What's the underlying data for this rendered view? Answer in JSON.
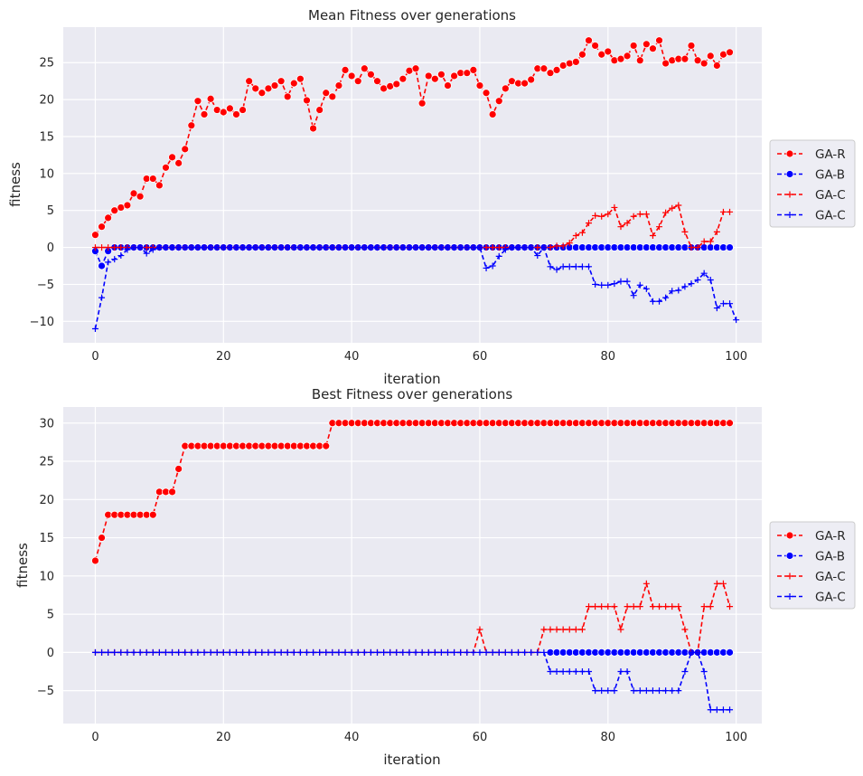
{
  "figure": {
    "background": "#ffffff",
    "plot_background": "#eaeaf2",
    "grid_color": "#ffffff"
  },
  "chart_data": [
    {
      "type": "line",
      "title": "Mean Fitness over generations",
      "xlabel": "iteration",
      "ylabel": "fitness",
      "xlim": [
        -5,
        104
      ],
      "ylim": [
        -12.9,
        29.8
      ],
      "xticks": [
        0,
        20,
        40,
        60,
        80,
        100
      ],
      "yticks": [
        -10,
        -5,
        0,
        5,
        10,
        15,
        20,
        25
      ],
      "grid": true,
      "legend_position": "center-right-outside",
      "series": [
        {
          "name": "GA-R",
          "color": "#ff0000",
          "marker": "o",
          "x_start": 0,
          "values": [
            1.7,
            2.8,
            4,
            5,
            5.4,
            5.7,
            7.3,
            6.9,
            9.3,
            9.3,
            8.4,
            10.8,
            12.2,
            11.4,
            13.3,
            16.5,
            19.8,
            18,
            20.1,
            18.6,
            18.3,
            18.8,
            18,
            18.6,
            22.5,
            21.5,
            20.9,
            21.5,
            21.9,
            22.5,
            20.4,
            22.2,
            22.8,
            19.9,
            16.1,
            18.6,
            20.9,
            20.4,
            21.9,
            24,
            23.2,
            22.5,
            24.2,
            23.4,
            22.5,
            21.5,
            21.8,
            22.1,
            22.8,
            23.9,
            24.2,
            19.5,
            23.2,
            22.8,
            23.4,
            21.9,
            23.2,
            23.6,
            23.6,
            24,
            21.9,
            20.9,
            18,
            19.8,
            21.5,
            22.5,
            22.2,
            22.2,
            22.7,
            24.2,
            24.2,
            23.6,
            24,
            24.6,
            24.9,
            25.1,
            26.1,
            28,
            27.3,
            26.1,
            26.5,
            25.3,
            25.5,
            25.9,
            27.3,
            25.3,
            27.5,
            26.9,
            28,
            24.9,
            25.3,
            25.5,
            25.5,
            27.3,
            25.3,
            24.9,
            25.9,
            24.6,
            26.1,
            26.4
          ]
        },
        {
          "name": "GA-B",
          "color": "#0000ff",
          "marker": "o",
          "x_start": 0,
          "values": [
            -0.5,
            -2.5,
            -0.5,
            0,
            0,
            0,
            0,
            0,
            0,
            0,
            0,
            0,
            0,
            0,
            0,
            0,
            0,
            0,
            0,
            0,
            0,
            0,
            0,
            0,
            0,
            0,
            0,
            0,
            0,
            0,
            0,
            0,
            0,
            0,
            0,
            0,
            0,
            0,
            0,
            0,
            0,
            0,
            0,
            0,
            0,
            0,
            0,
            0,
            0,
            0,
            0,
            0,
            0,
            0,
            0,
            0,
            0,
            0,
            0,
            0,
            0,
            0,
            0,
            0,
            0,
            0,
            0,
            0,
            0,
            0,
            0,
            0,
            0,
            0,
            0,
            0,
            0,
            0,
            0,
            0,
            0,
            0,
            0,
            0,
            0,
            0,
            0,
            0,
            0,
            0,
            0,
            0,
            0,
            0,
            0,
            0,
            0,
            0,
            0,
            0
          ]
        },
        {
          "name": "GA-C",
          "color": "#ff0000",
          "marker": "+",
          "x_start": 0,
          "values": [
            0,
            0,
            0,
            0,
            0,
            0,
            0,
            0,
            0,
            0,
            0,
            0,
            0,
            0,
            0,
            0,
            0,
            0,
            0,
            0,
            0,
            0,
            0,
            0,
            0,
            0,
            0,
            0,
            0,
            0,
            0,
            0,
            0,
            0,
            0,
            0,
            0,
            0,
            0,
            0,
            0,
            0,
            0,
            0,
            0,
            0,
            0,
            0,
            0,
            0,
            0,
            0,
            0,
            0,
            0,
            0,
            0,
            0,
            0,
            0,
            0,
            0,
            0,
            0,
            0,
            0,
            0,
            0,
            0,
            0,
            0,
            0,
            0.2,
            0.2,
            0.6,
            1.6,
            2,
            3.3,
            4.3,
            4.2,
            4.5,
            5.4,
            2.8,
            3.3,
            4.2,
            4.5,
            4.5,
            1.6,
            2.8,
            4.7,
            5.3,
            5.7,
            2.1,
            0,
            0,
            0.8,
            0.8,
            2.1,
            4.8,
            4.8
          ]
        },
        {
          "name": "GA-C",
          "color": "#0000ff",
          "marker": "+",
          "x_start": 0,
          "values": [
            -11,
            -6.8,
            -2,
            -1.6,
            -1.1,
            -0.3,
            0,
            0,
            -0.8,
            -0.3,
            0,
            0,
            0,
            0,
            0,
            0,
            0,
            0,
            0,
            0,
            0,
            0,
            0,
            0,
            0,
            0,
            0,
            0,
            0,
            0,
            0,
            0,
            0,
            0,
            0,
            0,
            0,
            0,
            0,
            0,
            0,
            0,
            0,
            0,
            0,
            0,
            0,
            0,
            0,
            0,
            0,
            0,
            0,
            0,
            0,
            0,
            0,
            0,
            0,
            0,
            0,
            -2.8,
            -2.5,
            -1.2,
            -0.3,
            0,
            0,
            0,
            0,
            -1.1,
            0,
            -2.6,
            -3,
            -2.6,
            -2.6,
            -2.6,
            -2.6,
            -2.6,
            -5,
            -5.1,
            -5.1,
            -4.9,
            -4.6,
            -4.6,
            -6.5,
            -5.1,
            -5.6,
            -7.3,
            -7.3,
            -6.8,
            -5.9,
            -5.8,
            -5.3,
            -4.9,
            -4.4,
            -3.5,
            -4.4,
            -8.2,
            -7.6,
            -7.6,
            -9.8
          ]
        }
      ]
    },
    {
      "type": "line",
      "title": "Best Fitness over generations",
      "xlabel": "iteration",
      "ylabel": "fitness",
      "xlim": [
        -5,
        104
      ],
      "ylim": [
        -9.3,
        32.1
      ],
      "xticks": [
        0,
        20,
        40,
        60,
        80,
        100
      ],
      "yticks": [
        -5,
        0,
        5,
        10,
        15,
        20,
        25,
        30
      ],
      "grid": true,
      "legend_position": "center-right-outside",
      "series": [
        {
          "name": "GA-R",
          "color": "#ff0000",
          "marker": "o",
          "x_start": 0,
          "values": [
            12,
            15,
            18,
            18,
            18,
            18,
            18,
            18,
            18,
            18,
            21,
            21,
            21,
            24,
            27,
            27,
            27,
            27,
            27,
            27,
            27,
            27,
            27,
            27,
            27,
            27,
            27,
            27,
            27,
            27,
            27,
            27,
            27,
            27,
            27,
            27,
            27,
            30,
            30,
            30,
            30,
            30,
            30,
            30,
            30,
            30,
            30,
            30,
            30,
            30,
            30,
            30,
            30,
            30,
            30,
            30,
            30,
            30,
            30,
            30,
            30,
            30,
            30,
            30,
            30,
            30,
            30,
            30,
            30,
            30,
            30,
            30,
            30,
            30,
            30,
            30,
            30,
            30,
            30,
            30,
            30,
            30,
            30,
            30,
            30,
            30,
            30,
            30,
            30,
            30,
            30,
            30,
            30,
            30,
            30,
            30,
            30,
            30,
            30,
            30
          ]
        },
        {
          "name": "GA-B",
          "color": "#0000ff",
          "marker": "o",
          "x_start": 71,
          "values": [
            0,
            0,
            0,
            0,
            0,
            0,
            0,
            0,
            0,
            0,
            0,
            0,
            0,
            0,
            0,
            0,
            0,
            0,
            0,
            0,
            0,
            0,
            0,
            0,
            0,
            0,
            0,
            0,
            0
          ]
        },
        {
          "name": "GA-C",
          "color": "#ff0000",
          "marker": "+",
          "x_start": 0,
          "values": [
            0,
            0,
            0,
            0,
            0,
            0,
            0,
            0,
            0,
            0,
            0,
            0,
            0,
            0,
            0,
            0,
            0,
            0,
            0,
            0,
            0,
            0,
            0,
            0,
            0,
            0,
            0,
            0,
            0,
            0,
            0,
            0,
            0,
            0,
            0,
            0,
            0,
            0,
            0,
            0,
            0,
            0,
            0,
            0,
            0,
            0,
            0,
            0,
            0,
            0,
            0,
            0,
            0,
            0,
            0,
            0,
            0,
            0,
            0,
            0,
            3,
            0,
            0,
            0,
            0,
            0,
            0,
            0,
            0,
            0,
            3,
            3,
            3,
            3,
            3,
            3,
            3,
            6,
            6,
            6,
            6,
            6,
            3,
            6,
            6,
            6,
            9,
            6,
            6,
            6,
            6,
            6,
            3,
            0,
            0,
            6,
            6,
            9,
            9,
            6
          ]
        },
        {
          "name": "GA-C",
          "color": "#0000ff",
          "marker": "+",
          "x_start": 0,
          "values": [
            0,
            0,
            0,
            0,
            0,
            0,
            0,
            0,
            0,
            0,
            0,
            0,
            0,
            0,
            0,
            0,
            0,
            0,
            0,
            0,
            0,
            0,
            0,
            0,
            0,
            0,
            0,
            0,
            0,
            0,
            0,
            0,
            0,
            0,
            0,
            0,
            0,
            0,
            0,
            0,
            0,
            0,
            0,
            0,
            0,
            0,
            0,
            0,
            0,
            0,
            0,
            0,
            0,
            0,
            0,
            0,
            0,
            0,
            0,
            0,
            0,
            0,
            0,
            0,
            0,
            0,
            0,
            0,
            0,
            0,
            0,
            -2.5,
            -2.5,
            -2.5,
            -2.5,
            -2.5,
            -2.5,
            -2.5,
            -5,
            -5,
            -5,
            -5,
            -2.5,
            -2.5,
            -5,
            -5,
            -5,
            -5,
            -5,
            -5,
            -5,
            -5,
            -2.5,
            0,
            0,
            -2.5,
            -7.5,
            -7.5,
            -7.5,
            -7.5
          ]
        }
      ]
    }
  ]
}
